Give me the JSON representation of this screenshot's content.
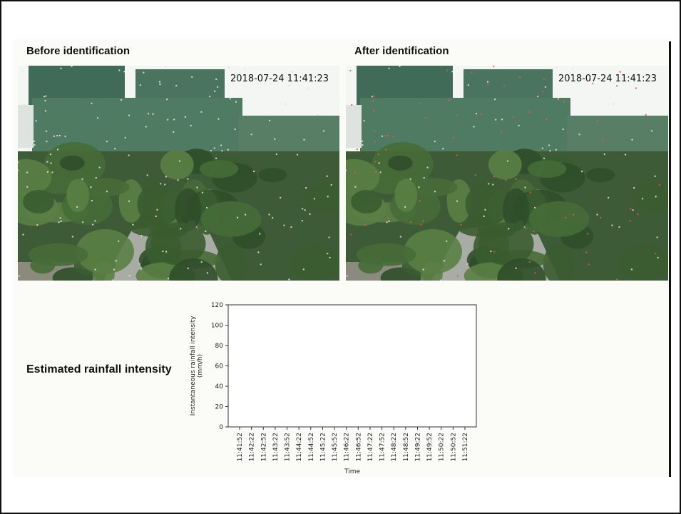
{
  "panels": {
    "before": {
      "title": "Before identification",
      "timestamp": "2018-07-24 11:41:23"
    },
    "after": {
      "title": "After identification",
      "timestamp": "2018-07-24 11:41:23"
    }
  },
  "estimate_label": "Estimated rainfall intensity",
  "chart_data": {
    "type": "line",
    "ylabel": [
      "Instantaneous rainfall intensity",
      "(mm/h)"
    ],
    "xlabel": "Time",
    "categories": [
      "11:41:52",
      "11:42:22",
      "11:42:52",
      "11:43:22",
      "11:43:52",
      "11:44:22",
      "11:44:52",
      "11:45:22",
      "11:45:52",
      "11:46:22",
      "11:46:52",
      "11:47:22",
      "11:47:52",
      "11:48:22",
      "11:48:52",
      "11:49:22",
      "11:49:52",
      "11:50:22",
      "11:50:52",
      "11:51:22"
    ],
    "ylim": [
      0,
      120
    ],
    "yticks": [
      0,
      20,
      40,
      60,
      80,
      100,
      120
    ]
  }
}
